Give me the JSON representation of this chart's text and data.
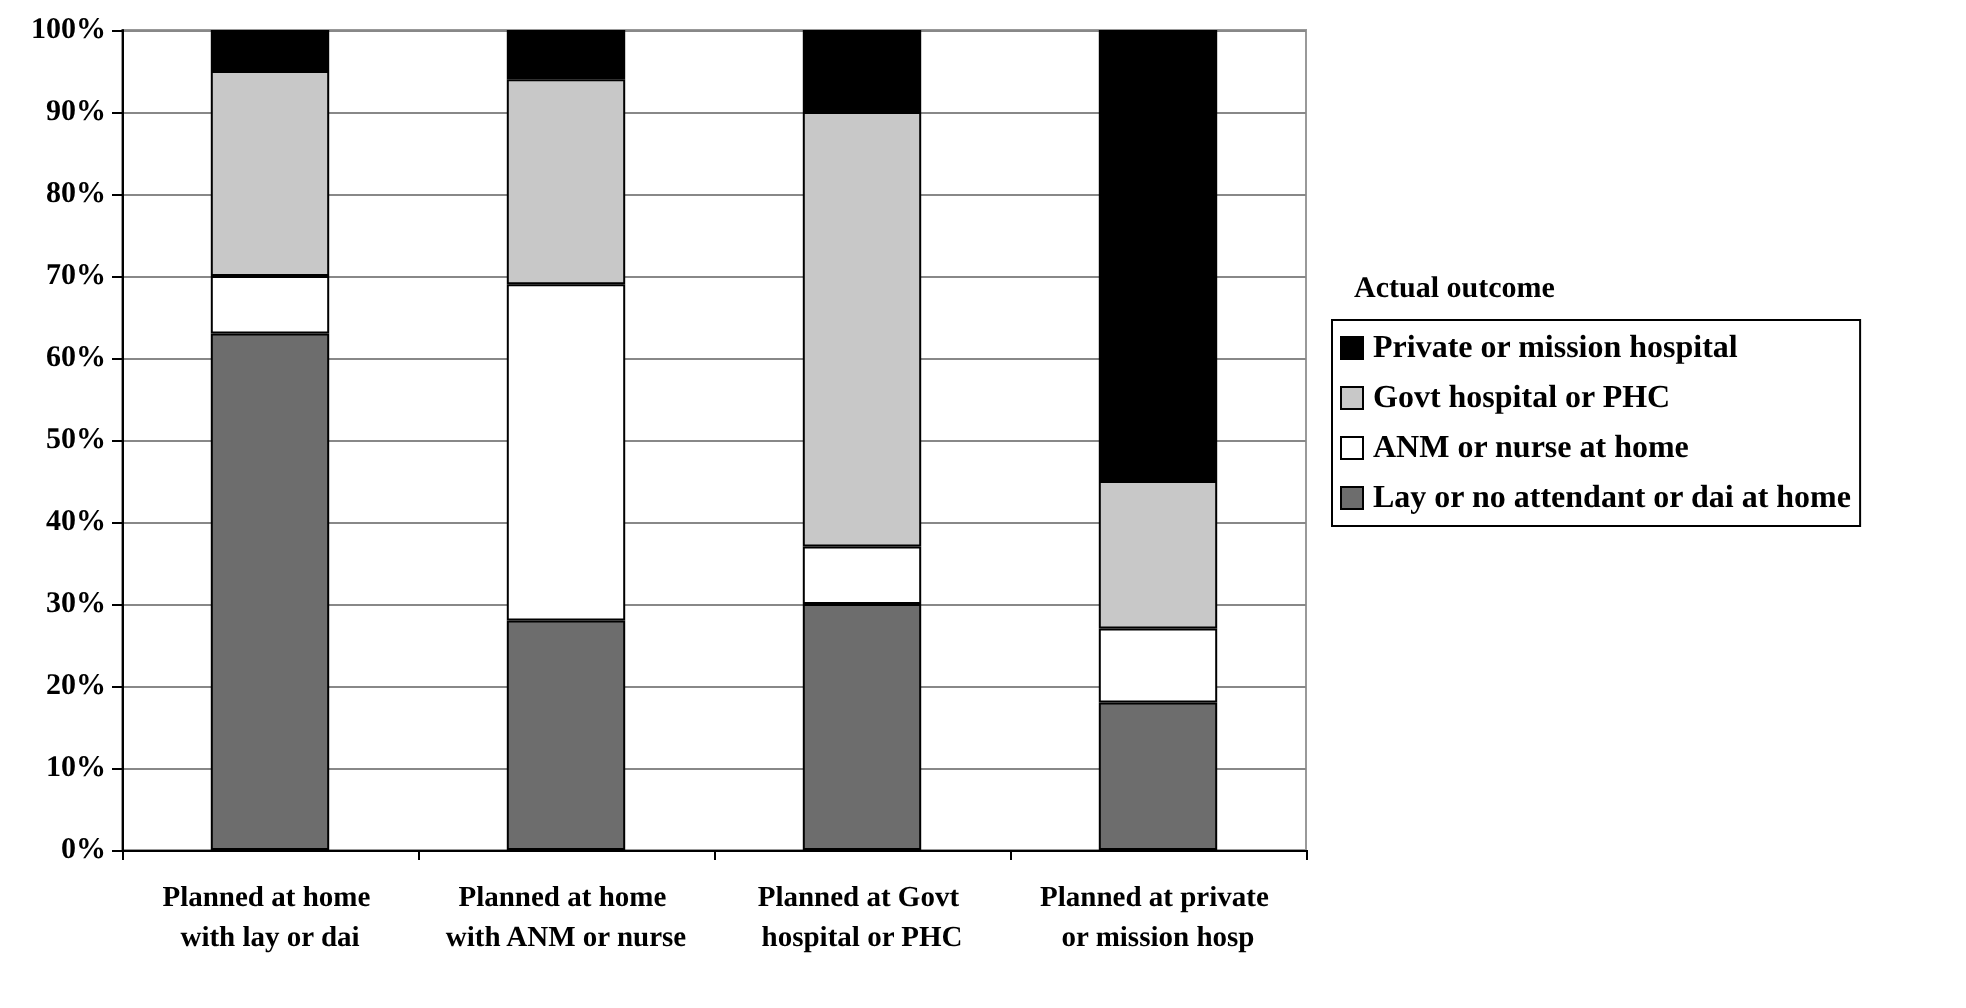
{
  "chart_data": {
    "type": "bar",
    "stacked": true,
    "categories": [
      "Planned at home with lay or dai",
      "Planned at home with ANM or nurse",
      "Planned at Govt hospital or PHC",
      "Planned at private or mission hosp"
    ],
    "series": [
      {
        "name": "Lay or no attendant or dai at home",
        "color": "#6d6d6d",
        "values": [
          63,
          28,
          30,
          18
        ]
      },
      {
        "name": "ANM or nurse at home",
        "color": "#ffffff",
        "values": [
          7,
          41,
          7,
          9
        ]
      },
      {
        "name": "Govt hospital or PHC",
        "color": "#c8c8c8",
        "values": [
          25,
          25,
          53,
          18
        ]
      },
      {
        "name": "Private or mission hospital",
        "color": "#000000",
        "values": [
          5,
          6,
          10,
          55
        ]
      }
    ],
    "ylim": [
      0,
      100
    ],
    "yticks": [
      {
        "value": 0,
        "label": "0%"
      },
      {
        "value": 10,
        "label": "10%"
      },
      {
        "value": 20,
        "label": "20%"
      },
      {
        "value": 30,
        "label": "30%"
      },
      {
        "value": 40,
        "label": "40%"
      },
      {
        "value": 50,
        "label": "50%"
      },
      {
        "value": 60,
        "label": "60%"
      },
      {
        "value": 70,
        "label": "70%"
      },
      {
        "value": 80,
        "label": "80%"
      },
      {
        "value": 90,
        "label": "90%"
      },
      {
        "value": 100,
        "label": "100%"
      }
    ],
    "grid": "y",
    "legend": "right",
    "legend_title": "Actual outcome"
  }
}
